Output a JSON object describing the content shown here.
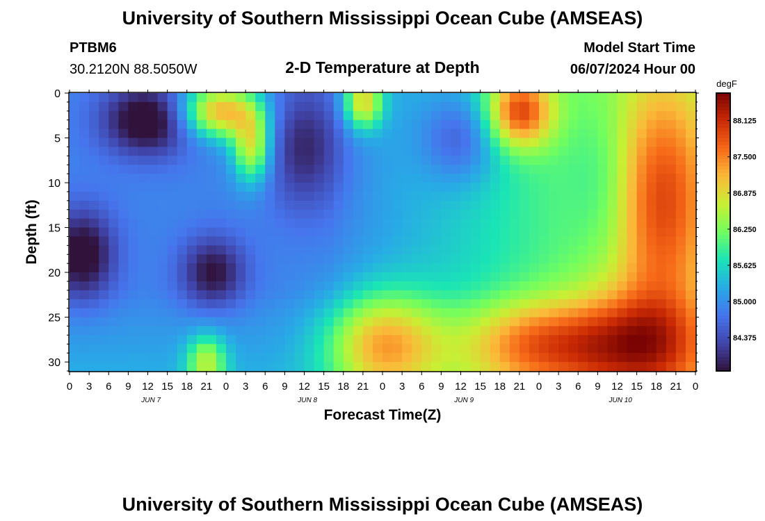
{
  "page": {
    "title": "University of Southern Mississippi Ocean Cube (AMSEAS)",
    "title_repeat": "University of Southern Mississippi Ocean Cube (AMSEAS)"
  },
  "station": {
    "id": "PTBM6",
    "location": "30.2120N  88.5050W"
  },
  "model": {
    "start_label": "Model Start Time",
    "start_value": "06/07/2024 Hour 00"
  },
  "chart_data": {
    "type": "heatmap",
    "title": "2-D Temperature at Depth",
    "xlabel": "Forecast Time(Z)",
    "ylabel": "Depth (ft)",
    "x_hours_range": [
      0,
      96
    ],
    "y_range": [
      0,
      31
    ],
    "y_ticks": [
      0,
      5,
      10,
      15,
      20,
      25,
      30
    ],
    "x_tick_labels": [
      "0",
      "3",
      "6",
      "9",
      "12",
      "15",
      "18",
      "21",
      "0",
      "3",
      "6",
      "9",
      "12",
      "15",
      "18",
      "21",
      "0",
      "3",
      "6",
      "9",
      "12",
      "15",
      "18",
      "21",
      "0",
      "3",
      "6",
      "9",
      "12",
      "15",
      "18",
      "21",
      "0"
    ],
    "day_labels": [
      "JUN 7",
      "JUN 8",
      "JUN 9",
      "JUN 10"
    ],
    "colorbar": {
      "unit": "degF",
      "range": [
        83.8,
        88.6
      ],
      "ticks": [
        "88.125",
        "87.500",
        "86.875",
        "86.250",
        "85.625",
        "85.000",
        "84.375"
      ],
      "tick_values": [
        88.125,
        87.5,
        86.875,
        86.25,
        85.625,
        85.0,
        84.375
      ],
      "colormap": "turbo"
    },
    "grid": false
  }
}
